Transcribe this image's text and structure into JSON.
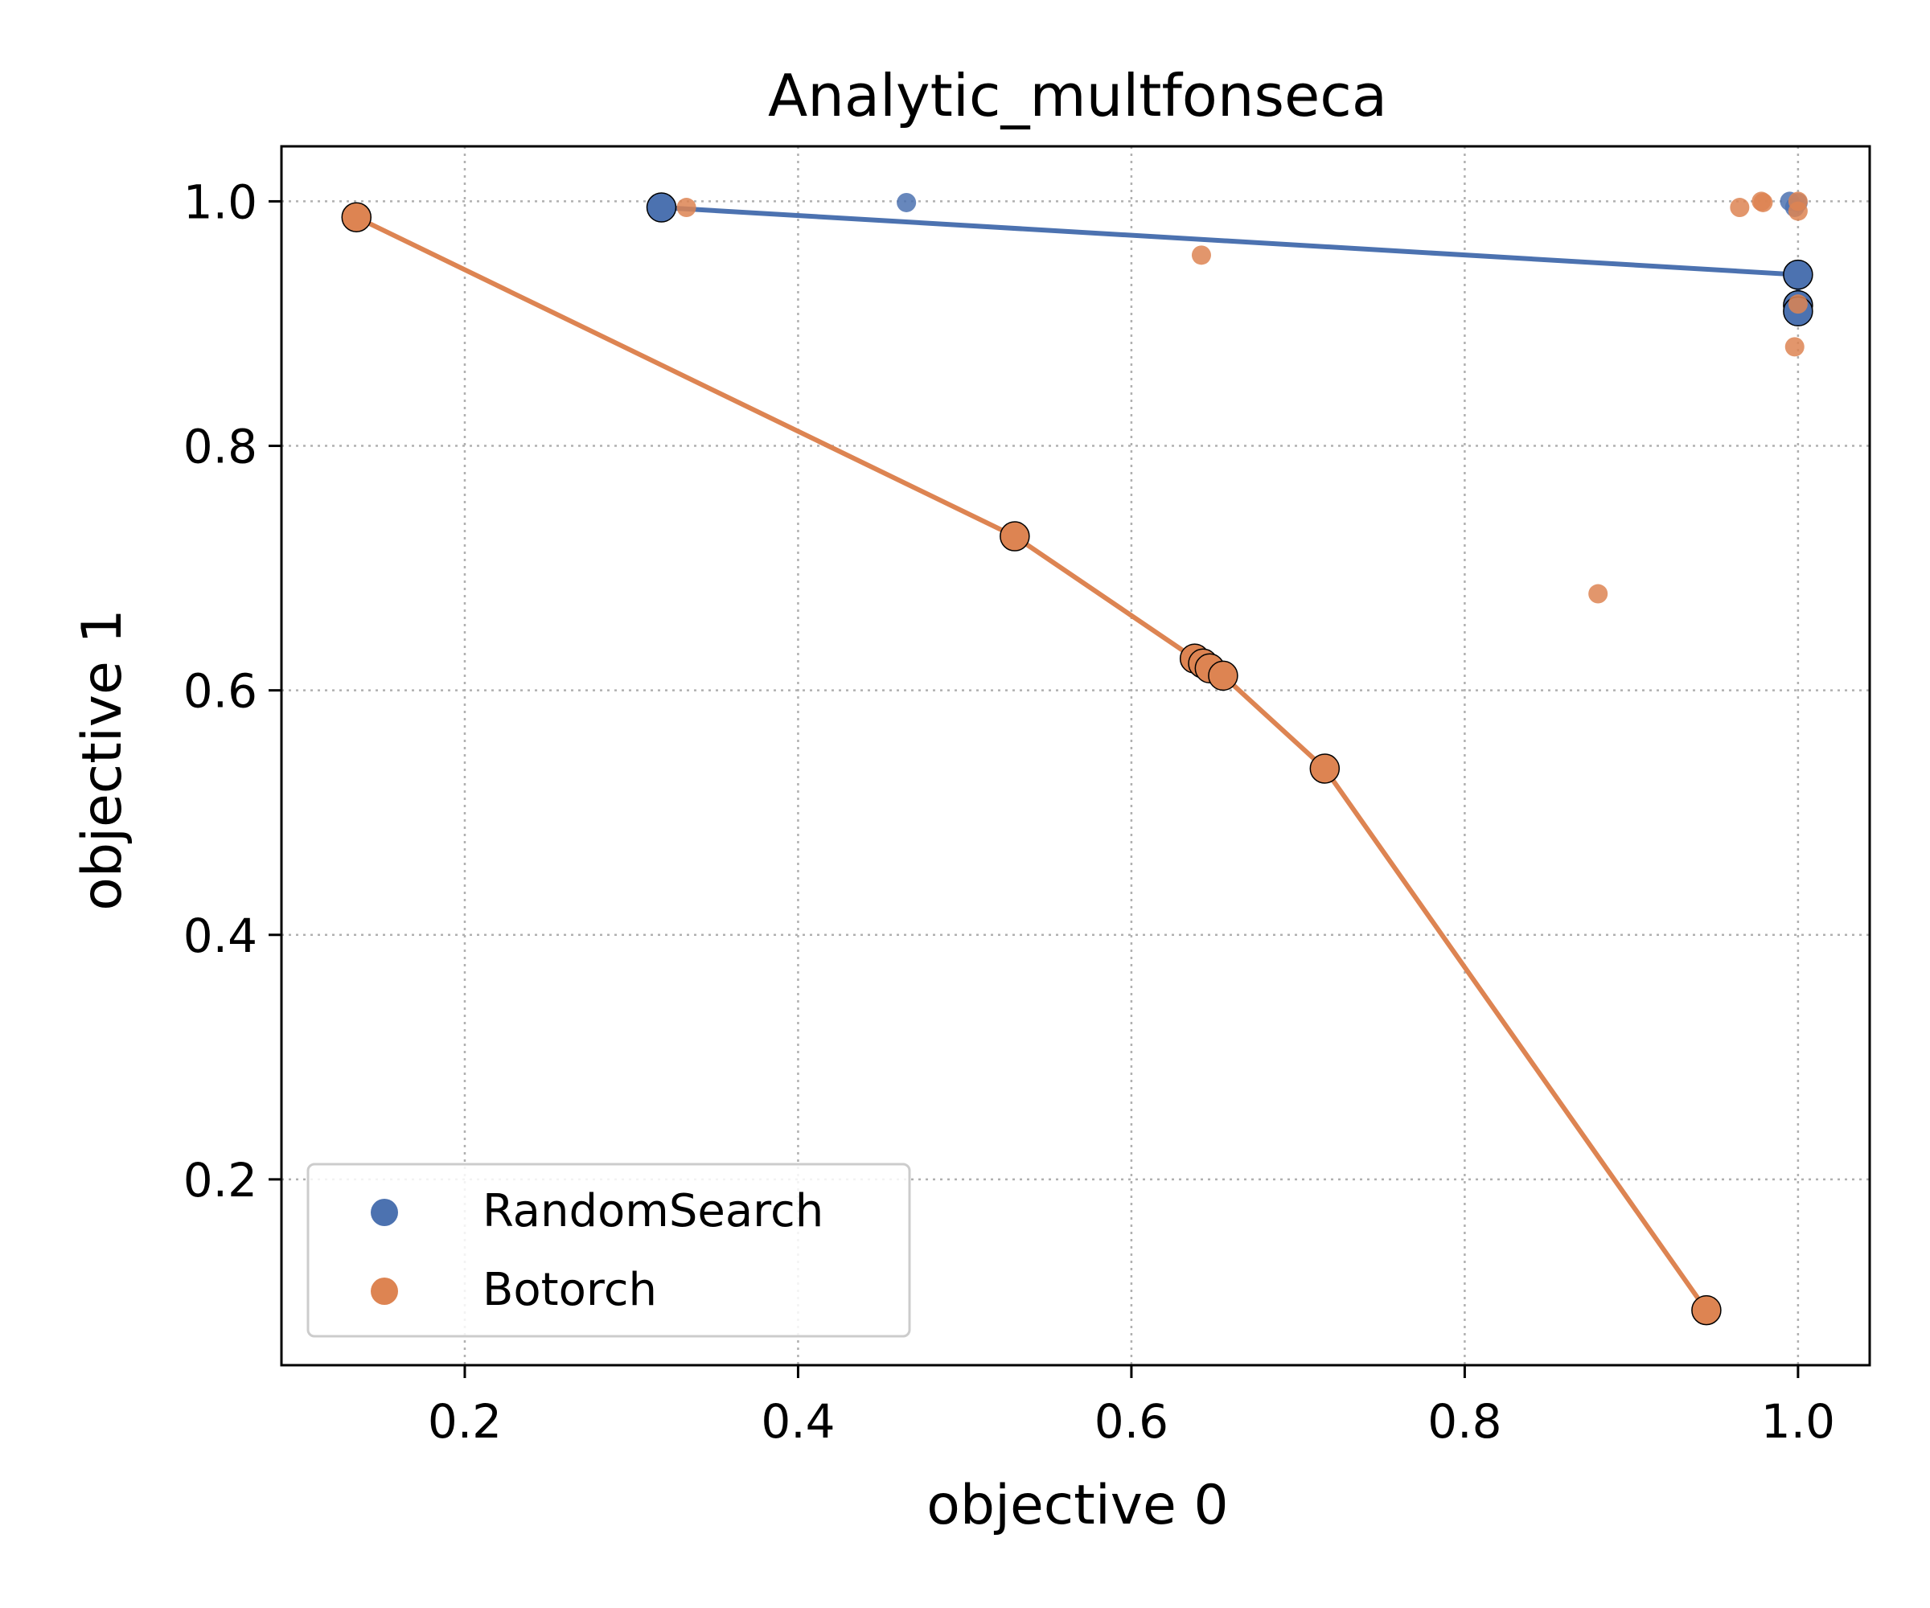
{
  "chart_data": {
    "type": "scatter",
    "title": "Analytic_multfonseca",
    "xlabel": "objective 0",
    "ylabel": "objective 1",
    "xlim": [
      0.09,
      1.043
    ],
    "ylim": [
      0.048,
      1.045
    ],
    "xticks": [
      0.2,
      0.4,
      0.6,
      0.8,
      1.0
    ],
    "yticks": [
      0.2,
      0.4,
      0.6,
      0.8,
      1.0
    ],
    "xtick_labels": [
      "0.2",
      "0.4",
      "0.6",
      "0.8",
      "1.0"
    ],
    "ytick_labels": [
      "0.2",
      "0.4",
      "0.6",
      "0.8",
      "1.0"
    ],
    "grid": true,
    "legend_position": "lower-left",
    "series": [
      {
        "name": "RandomSearch",
        "color": "#4c72b0",
        "points": [
          [
            0.465,
            0.999
          ],
          [
            0.995,
            1.0
          ],
          [
            1.0,
            0.999
          ],
          [
            0.998,
            0.995
          ]
        ],
        "front": [
          [
            0.318,
            0.995
          ],
          [
            1.0,
            0.94
          ],
          [
            1.0,
            0.915
          ],
          [
            1.0,
            0.91
          ]
        ]
      },
      {
        "name": "Botorch",
        "color": "#dd8452",
        "points": [
          [
            0.333,
            0.995
          ],
          [
            0.642,
            0.956
          ],
          [
            0.88,
            0.679
          ],
          [
            0.965,
            0.995
          ],
          [
            0.978,
            1.0
          ],
          [
            0.979,
            0.999
          ],
          [
            1.0,
            1.0
          ],
          [
            1.0,
            0.992
          ],
          [
            1.0,
            0.916
          ],
          [
            0.998,
            0.881
          ]
        ],
        "front": [
          [
            0.135,
            0.987
          ],
          [
            0.53,
            0.726
          ],
          [
            0.638,
            0.626
          ],
          [
            0.643,
            0.622
          ],
          [
            0.647,
            0.618
          ],
          [
            0.655,
            0.612
          ],
          [
            0.716,
            0.536
          ],
          [
            0.945,
            0.093
          ]
        ]
      }
    ]
  }
}
